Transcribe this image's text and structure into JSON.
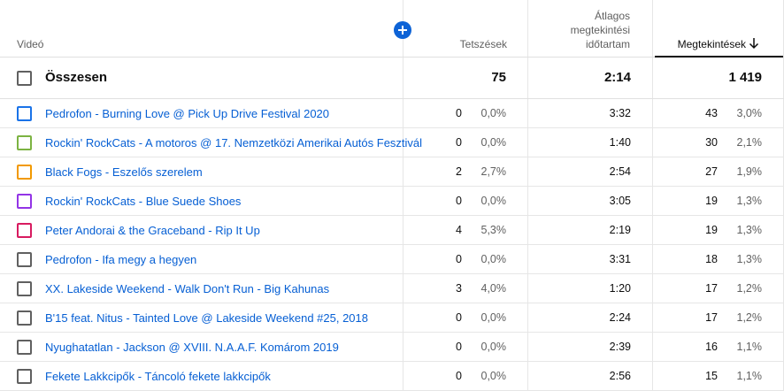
{
  "header": {
    "video": "Videó",
    "likes": "Tetszések",
    "avg_line1": "Átlagos",
    "avg_line2": "megtekintési",
    "avg_line3": "időtartam",
    "views": "Megtekintések",
    "sort_icon": "arrow-down-icon",
    "add_icon": "plus-circle-icon"
  },
  "total": {
    "label": "Összesen",
    "likes": "75",
    "avg": "2:14",
    "views": "1 419"
  },
  "rows": [
    {
      "title": "Pedrofon - Burning Love @ Pick Up Drive Festival 2020",
      "color": "#1a73e8",
      "likes": "0",
      "likes_pct": "0,0%",
      "avg": "3:32",
      "views": "43",
      "views_pct": "3,0%"
    },
    {
      "title": "Rockin' RockCats - A motoros @ 17. Nemzetközi Amerikai Autós Fesztivál",
      "color": "#7cb342",
      "likes": "0",
      "likes_pct": "0,0%",
      "avg": "1:40",
      "views": "30",
      "views_pct": "2,1%"
    },
    {
      "title": "Black Fogs - Eszelős szerelem",
      "color": "#f29900",
      "likes": "2",
      "likes_pct": "2,7%",
      "avg": "2:54",
      "views": "27",
      "views_pct": "1,9%"
    },
    {
      "title": "Rockin' RockCats - Blue Suede Shoes",
      "color": "#9334e6",
      "likes": "0",
      "likes_pct": "0,0%",
      "avg": "3:05",
      "views": "19",
      "views_pct": "1,3%"
    },
    {
      "title": "Peter Andorai & the Graceband - Rip It Up",
      "color": "#d81b60",
      "likes": "4",
      "likes_pct": "5,3%",
      "avg": "2:19",
      "views": "19",
      "views_pct": "1,3%"
    },
    {
      "title": "Pedrofon - Ifa megy a hegyen",
      "color": "#606060",
      "likes": "0",
      "likes_pct": "0,0%",
      "avg": "3:31",
      "views": "18",
      "views_pct": "1,3%"
    },
    {
      "title": "XX. Lakeside Weekend - Walk Don't Run - Big Kahunas",
      "color": "#606060",
      "likes": "3",
      "likes_pct": "4,0%",
      "avg": "1:20",
      "views": "17",
      "views_pct": "1,2%"
    },
    {
      "title": "B'15 feat. Nitus - Tainted Love @ Lakeside Weekend #25, 2018",
      "color": "#606060",
      "likes": "0",
      "likes_pct": "0,0%",
      "avg": "2:24",
      "views": "17",
      "views_pct": "1,2%"
    },
    {
      "title": "Nyughatatlan - Jackson @ XVIII. N.A.A.F. Komárom 2019",
      "color": "#606060",
      "likes": "0",
      "likes_pct": "0,0%",
      "avg": "2:39",
      "views": "16",
      "views_pct": "1,1%"
    },
    {
      "title": "Fekete Lakkcipők - Táncoló fekete lakkcipők",
      "color": "#606060",
      "likes": "0",
      "likes_pct": "0,0%",
      "avg": "2:56",
      "views": "15",
      "views_pct": "1,1%"
    }
  ]
}
